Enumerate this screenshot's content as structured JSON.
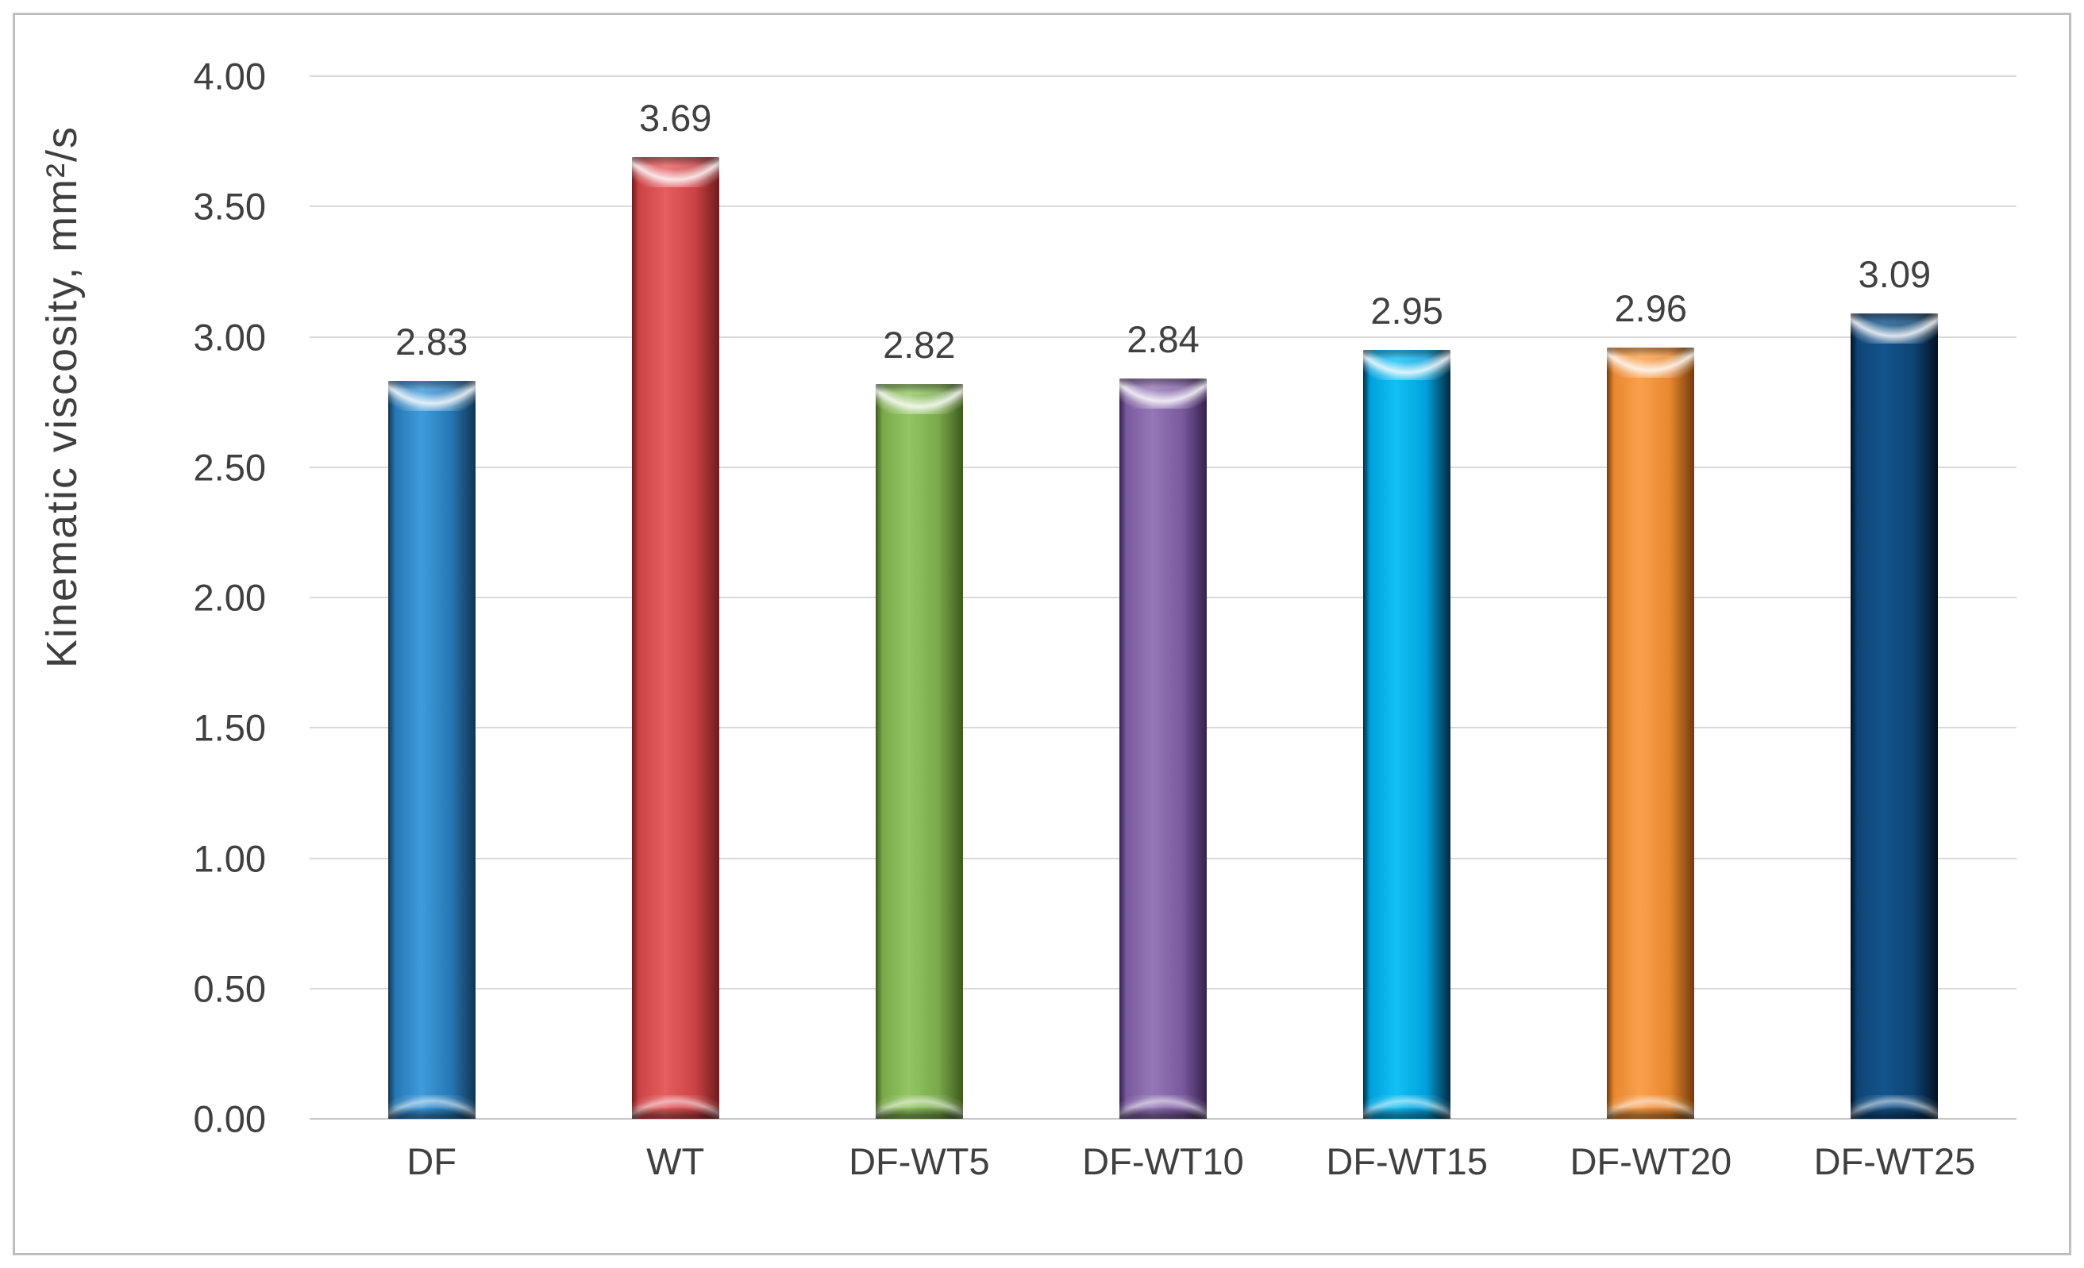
{
  "figure": {
    "background_color": "#FFFFFF",
    "border_color": "#BEBEBE"
  },
  "chart_data": {
    "type": "bar",
    "title": "",
    "xlabel": "",
    "ylabel": "Kinematic viscosity, mm²/s",
    "ylim": [
      0,
      4
    ],
    "ytick_step": 0.5,
    "ytick_labels": [
      "0.00",
      "0.50",
      "1.00",
      "1.50",
      "2.00",
      "2.50",
      "3.00",
      "3.50",
      "4.00"
    ],
    "grid": true,
    "gridline_color": "#D9D9D9",
    "legend_position": "none",
    "categories": [
      "DF",
      "WT",
      "DF-WT5",
      "DF-WT10",
      "DF-WT15",
      "DF-WT20",
      "DF-WT25"
    ],
    "values": [
      2.83,
      3.69,
      2.82,
      2.84,
      2.95,
      2.96,
      3.09
    ],
    "data_labels": [
      "2.83",
      "3.69",
      "2.82",
      "2.84",
      "2.95",
      "2.96",
      "3.09"
    ],
    "bar_style": "3d-bevel-cylinder",
    "bar_colors": [
      {
        "name": "blue",
        "light": "#3F9BDC",
        "mid": "#2677B4",
        "dark": "#0F3552"
      },
      {
        "name": "red",
        "light": "#E65E60",
        "mid": "#CC4345",
        "dark": "#6E1B1D"
      },
      {
        "name": "green",
        "light": "#93C663",
        "mid": "#79A94A",
        "dark": "#3E5A1D"
      },
      {
        "name": "purple",
        "light": "#9577B7",
        "mid": "#7A5A9E",
        "dark": "#35204E"
      },
      {
        "name": "cyan",
        "light": "#12C1F5",
        "mid": "#00A0DC",
        "dark": "#05293E"
      },
      {
        "name": "orange",
        "light": "#FAA04C",
        "mid": "#E8872F",
        "dark": "#6F3C0A"
      },
      {
        "name": "navy",
        "light": "#14548C",
        "mid": "#0E4475",
        "dark": "#041120"
      }
    ]
  }
}
